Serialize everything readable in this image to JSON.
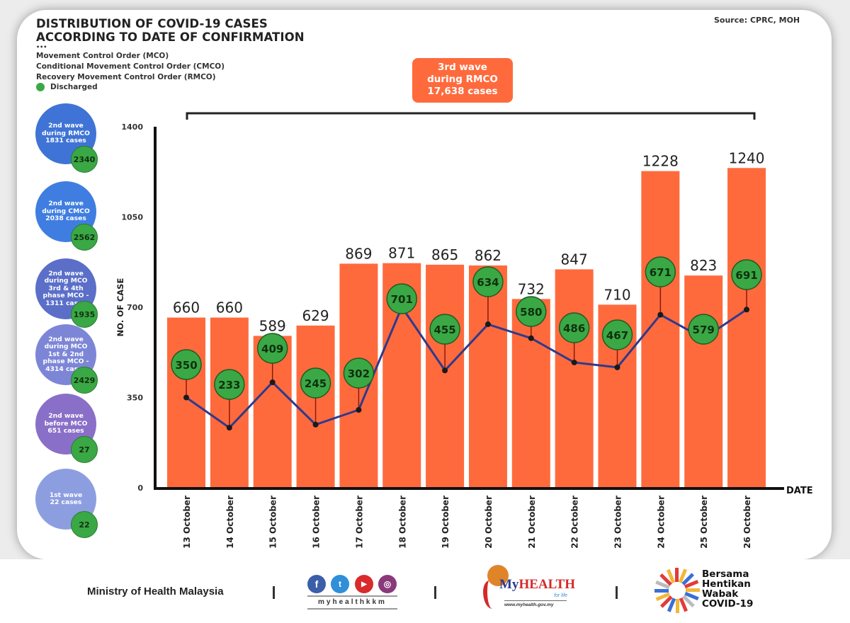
{
  "header": {
    "title_line1": "DISTRIBUTION OF COVID-19 CASES",
    "title_line2": "ACCORDING TO DATE OF CONFIRMATION",
    "dots": "•••",
    "legend_lines": [
      "Movement Control Order (MCO)",
      "Conditional Movement Control Order (CMCO)",
      "Recovery Movement Control Order (RMCO)"
    ],
    "discharged_label": "Discharged",
    "source": "Source: CPRC, MOH"
  },
  "colors": {
    "bar": "#ff6a3d",
    "discharged": "#3aa845",
    "line": "#2e3a8c",
    "axis": "#111111"
  },
  "waves": [
    {
      "label": "2nd wave\nduring RMCO\n1831 cases",
      "discharged": "2340",
      "color": "#3f74d6"
    },
    {
      "label": "2nd wave\nduring CMCO\n2038 cases",
      "discharged": "2562",
      "color": "#3f7ee0"
    },
    {
      "label": "2nd wave\nduring MCO\n3rd & 4th\nphase MCO -\n1311 cases",
      "discharged": "1935",
      "color": "#5b6fc9"
    },
    {
      "label": "2nd wave\nduring MCO\n1st & 2nd\nphase MCO -\n4314 cases",
      "discharged": "2429",
      "color": "#7d86d6"
    },
    {
      "label": "2nd wave\nbefore MCO\n651 cases",
      "discharged": "27",
      "color": "#8a6fc8"
    },
    {
      "label": "1st wave\n22 cases",
      "discharged": "22",
      "color": "#8d9ee0"
    }
  ],
  "third_wave": {
    "line1": "3rd wave",
    "line2": "during RMCO",
    "line3": "17,638 cases"
  },
  "chart_data": {
    "type": "bar",
    "title": "DISTRIBUTION OF COVID-19 CASES ACCORDING TO DATE OF CONFIRMATION",
    "xlabel": "DATE",
    "ylabel": "NO. OF CASE",
    "ylim": [
      0,
      1400
    ],
    "yticks": [
      0,
      350,
      700,
      1050,
      1400
    ],
    "grid": false,
    "categories": [
      "13 October",
      "14 October",
      "15 October",
      "16 October",
      "17 October",
      "18 October",
      "19 October",
      "20 October",
      "21 October",
      "22 October",
      "23 October",
      "24 October",
      "25 October",
      "26 October"
    ],
    "series": [
      {
        "name": "Cases",
        "type": "bar",
        "values": [
          660,
          660,
          589,
          629,
          869,
          871,
          865,
          862,
          732,
          847,
          710,
          1228,
          823,
          1240
        ]
      },
      {
        "name": "Discharged",
        "type": "line",
        "values": [
          350,
          233,
          409,
          245,
          302,
          701,
          455,
          634,
          580,
          486,
          467,
          671,
          579,
          691
        ]
      }
    ],
    "annotation": "3rd wave during RMCO 17,638 cases"
  },
  "footer": {
    "ministry": "Ministry of Health Malaysia",
    "separator": "|",
    "social_handle": "myhealthkkm",
    "social_icons": [
      "f",
      "t",
      "▶",
      "◎"
    ],
    "myhealth_brand_my": "My",
    "myhealth_brand_health": "HEALTH",
    "myhealth_tagline": "for life",
    "myhealth_url": "www.myhealth.gov.my",
    "campaign_lines": [
      "Bersama",
      "Hentikan",
      "Wabak",
      "COVID-19"
    ]
  }
}
